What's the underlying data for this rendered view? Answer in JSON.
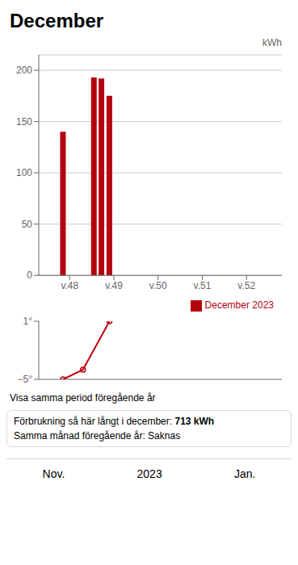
{
  "chart_data": [
    {
      "type": "bar",
      "title": "December",
      "x": [
        47.85,
        48.55,
        48.72,
        48.9
      ],
      "series": [
        {
          "name": "December 2023",
          "color": "#b50010",
          "values": [
            140,
            193,
            192,
            175
          ]
        }
      ],
      "xlim": [
        47.3,
        52.8
      ],
      "xticks": [
        {
          "value": 48,
          "label": "v.48"
        },
        {
          "value": 49,
          "label": "v.49"
        },
        {
          "value": 50,
          "label": "v.50"
        },
        {
          "value": 51,
          "label": "v.51"
        },
        {
          "value": 52,
          "label": "v.52"
        }
      ],
      "ylim": [
        0,
        215
      ],
      "yticks": [
        0,
        50,
        100,
        150,
        200
      ],
      "y_label": "kWh",
      "grid": true,
      "legend": "lower right",
      "annotations": [
        "Visa samma period föregående år",
        "Förbrukning så här långt i december:",
        "713 kWh",
        "Samma månad föregående år:",
        "Saknas",
        "Nov.",
        "2023",
        "Jan."
      ]
    },
    {
      "type": "line",
      "x": [
        47.85,
        48.3,
        48.9
      ],
      "values": [
        -5,
        -4,
        1
      ],
      "color": "#c0000c",
      "marker": "circle",
      "xlim": [
        47.3,
        52.8
      ],
      "ylim": [
        -5,
        1
      ],
      "yticks": [
        {
          "value": 1,
          "label": "1°"
        },
        {
          "value": -5,
          "label": "−5°"
        }
      ],
      "tick_labels": "y",
      "grid": false
    }
  ]
}
